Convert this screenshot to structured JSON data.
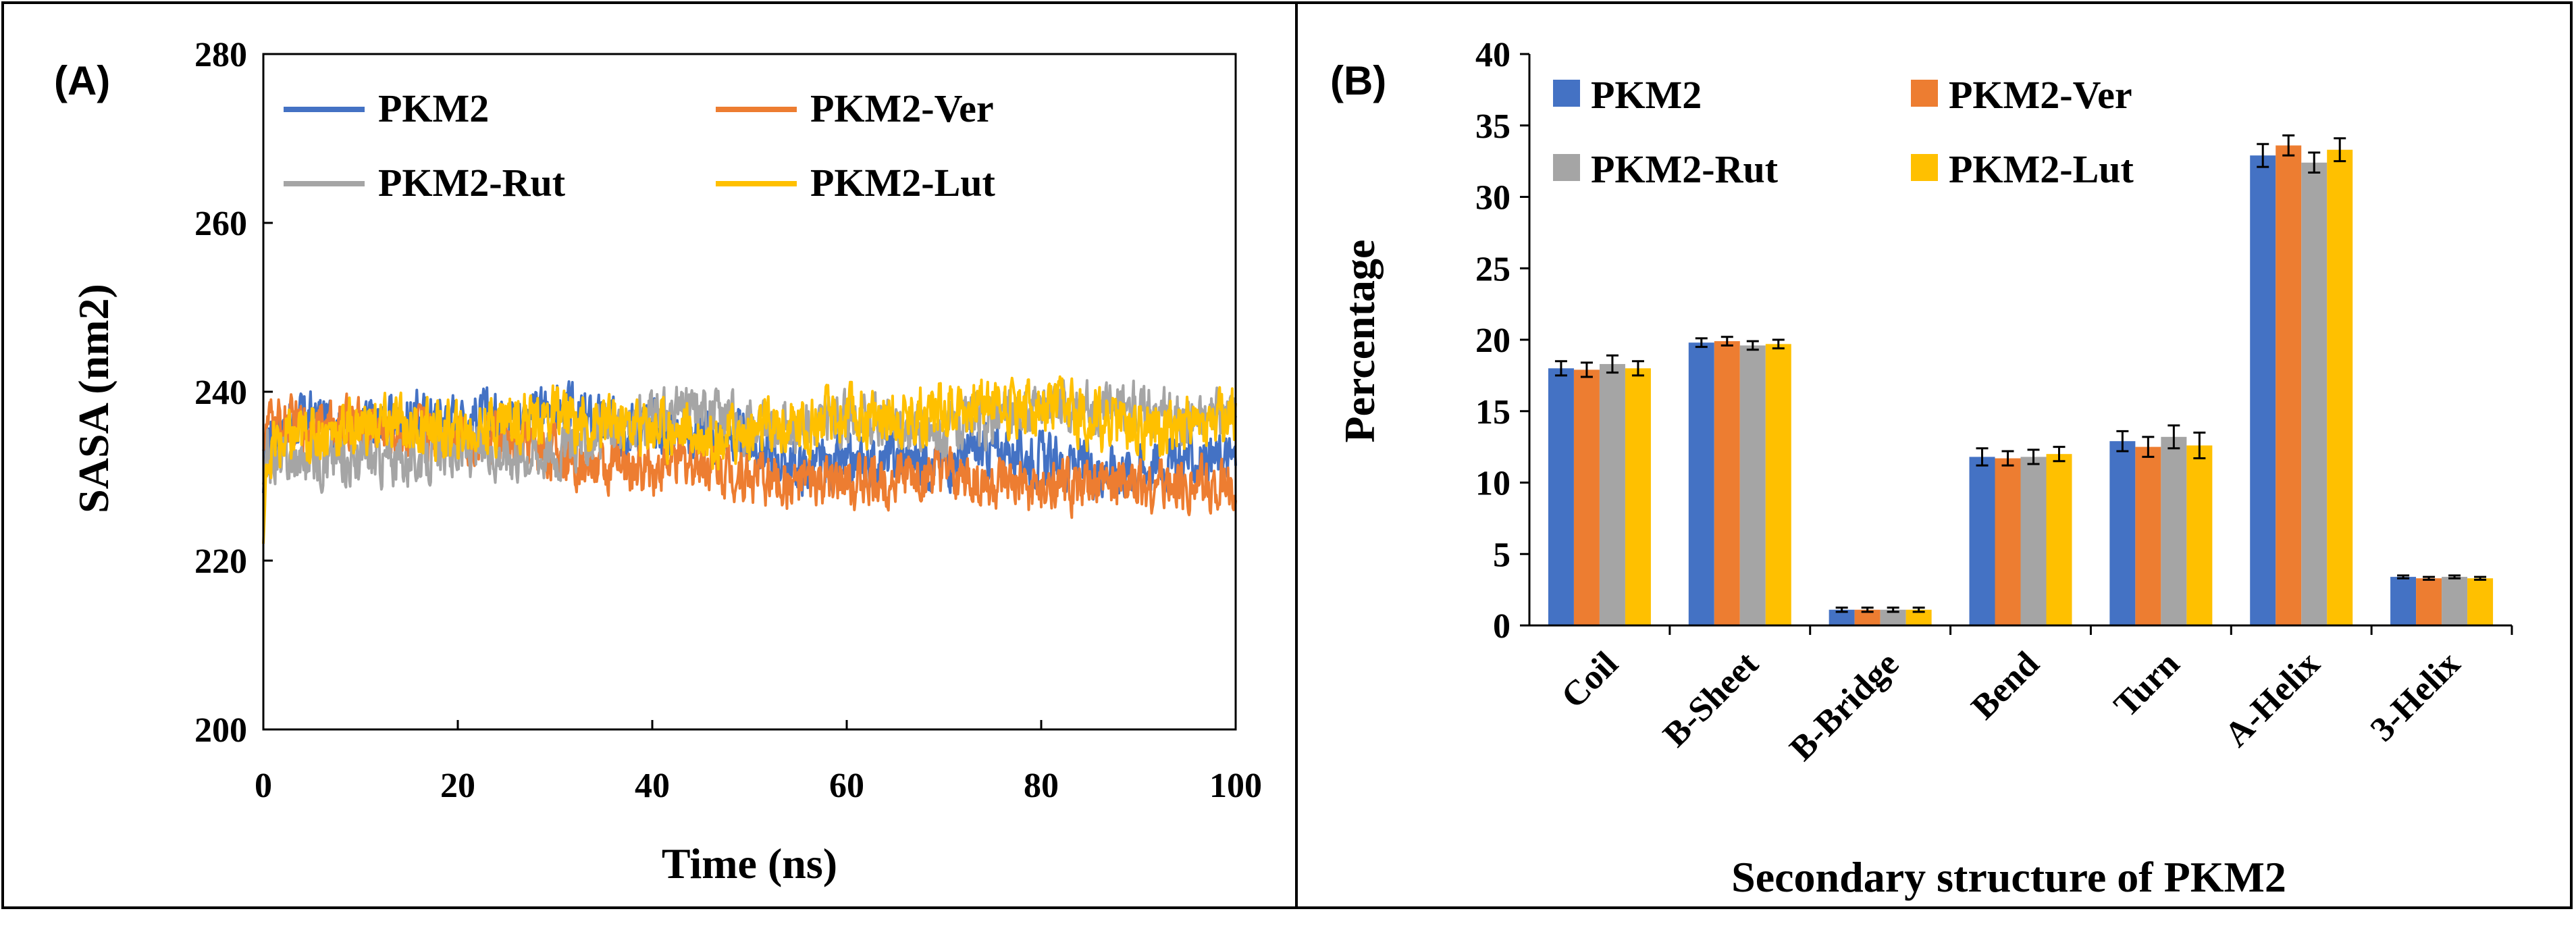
{
  "colors": {
    "PKM2": "#4472C4",
    "PKM2-Ver": "#ED7D31",
    "PKM2-Rut": "#A5A5A5",
    "PKM2-Lut": "#FFC000"
  },
  "chart_data": [
    {
      "panel_label": "(A)",
      "type": "line",
      "xlabel": "Time (ns)",
      "ylabel": "SASA (nm2)",
      "xlim": [
        0,
        100
      ],
      "ylim": [
        200,
        280
      ],
      "xticks": [
        0,
        20,
        40,
        60,
        80,
        100
      ],
      "yticks": [
        200,
        220,
        240,
        260,
        280
      ],
      "legend_position": "top",
      "series": [
        {
          "name": "PKM2",
          "start": 228,
          "points": [
            [
              0,
              235
            ],
            [
              5,
              237
            ],
            [
              10,
              236
            ],
            [
              15,
              237
            ],
            [
              20,
              237
            ],
            [
              25,
              237
            ],
            [
              30,
              238
            ],
            [
              35,
              236
            ],
            [
              40,
              236
            ],
            [
              45,
              235
            ],
            [
              50,
              234
            ],
            [
              55,
              231
            ],
            [
              60,
              231
            ],
            [
              65,
              232
            ],
            [
              70,
              232
            ],
            [
              75,
              233
            ],
            [
              80,
              232
            ],
            [
              85,
              231
            ],
            [
              90,
              231
            ],
            [
              95,
              232
            ],
            [
              100,
              232
            ]
          ],
          "noise": 1.6
        },
        {
          "name": "PKM2-Ver",
          "start": 233,
          "points": [
            [
              0,
              236
            ],
            [
              5,
              236
            ],
            [
              10,
              236
            ],
            [
              15,
              235
            ],
            [
              20,
              235
            ],
            [
              25,
              234
            ],
            [
              30,
              233
            ],
            [
              35,
              231
            ],
            [
              40,
              231
            ],
            [
              45,
              232
            ],
            [
              50,
              230
            ],
            [
              55,
              229
            ],
            [
              60,
              229
            ],
            [
              65,
              230
            ],
            [
              70,
              230
            ],
            [
              75,
              229
            ],
            [
              80,
              228
            ],
            [
              85,
              229
            ],
            [
              90,
              229
            ],
            [
              95,
              229
            ],
            [
              100,
              229
            ]
          ],
          "noise": 1.6
        },
        {
          "name": "PKM2-Rut",
          "start": 229,
          "points": [
            [
              0,
              232
            ],
            [
              5,
              232
            ],
            [
              10,
              232
            ],
            [
              15,
              232
            ],
            [
              20,
              233
            ],
            [
              25,
              233
            ],
            [
              30,
              233
            ],
            [
              35,
              235
            ],
            [
              40,
              237
            ],
            [
              45,
              238
            ],
            [
              50,
              236
            ],
            [
              55,
              236
            ],
            [
              60,
              237
            ],
            [
              65,
              236
            ],
            [
              70,
              235
            ],
            [
              75,
              237
            ],
            [
              80,
              238
            ],
            [
              85,
              238
            ],
            [
              90,
              238
            ],
            [
              95,
              237
            ],
            [
              100,
              237
            ]
          ],
          "noise": 1.6
        },
        {
          "name": "PKM2-Lut",
          "start": 222,
          "points": [
            [
              0,
              233
            ],
            [
              5,
              235
            ],
            [
              10,
              236
            ],
            [
              15,
              236
            ],
            [
              20,
              235
            ],
            [
              25,
              237
            ],
            [
              30,
              237
            ],
            [
              35,
              236
            ],
            [
              40,
              236
            ],
            [
              45,
              235
            ],
            [
              50,
              235
            ],
            [
              55,
              236
            ],
            [
              60,
              237
            ],
            [
              65,
              237
            ],
            [
              70,
              238
            ],
            [
              75,
              239
            ],
            [
              80,
              238
            ],
            [
              85,
              237
            ],
            [
              90,
              236
            ],
            [
              95,
              236
            ],
            [
              100,
              237
            ]
          ],
          "noise": 1.8
        }
      ]
    },
    {
      "panel_label": "(B)",
      "type": "bar",
      "xlabel": "Secondary structure of PKM2",
      "ylabel": "Percentage",
      "ylim": [
        0,
        40
      ],
      "yticks": [
        0,
        5,
        10,
        15,
        20,
        25,
        30,
        35,
        40
      ],
      "legend_position": "top-left",
      "categories": [
        "Coil",
        "B-Sheet",
        "B-Bridge",
        "Bend",
        "Turn",
        "A-Helix",
        "3-Helix"
      ],
      "series": [
        {
          "name": "PKM2",
          "values": [
            18.0,
            19.8,
            1.1,
            11.8,
            12.9,
            32.9,
            3.4
          ],
          "errors": [
            0.5,
            0.3,
            0.15,
            0.6,
            0.7,
            0.8,
            0.1
          ]
        },
        {
          "name": "PKM2-Ver",
          "values": [
            17.9,
            19.9,
            1.1,
            11.7,
            12.5,
            33.6,
            3.3
          ],
          "errors": [
            0.5,
            0.3,
            0.15,
            0.5,
            0.7,
            0.7,
            0.1
          ]
        },
        {
          "name": "PKM2-Rut",
          "values": [
            18.3,
            19.6,
            1.1,
            11.8,
            13.2,
            32.4,
            3.4
          ],
          "errors": [
            0.6,
            0.3,
            0.15,
            0.5,
            0.8,
            0.7,
            0.1
          ]
        },
        {
          "name": "PKM2-Lut",
          "values": [
            18.0,
            19.7,
            1.1,
            12.0,
            12.6,
            33.3,
            3.3
          ],
          "errors": [
            0.5,
            0.3,
            0.15,
            0.5,
            0.9,
            0.8,
            0.1
          ]
        }
      ]
    }
  ]
}
